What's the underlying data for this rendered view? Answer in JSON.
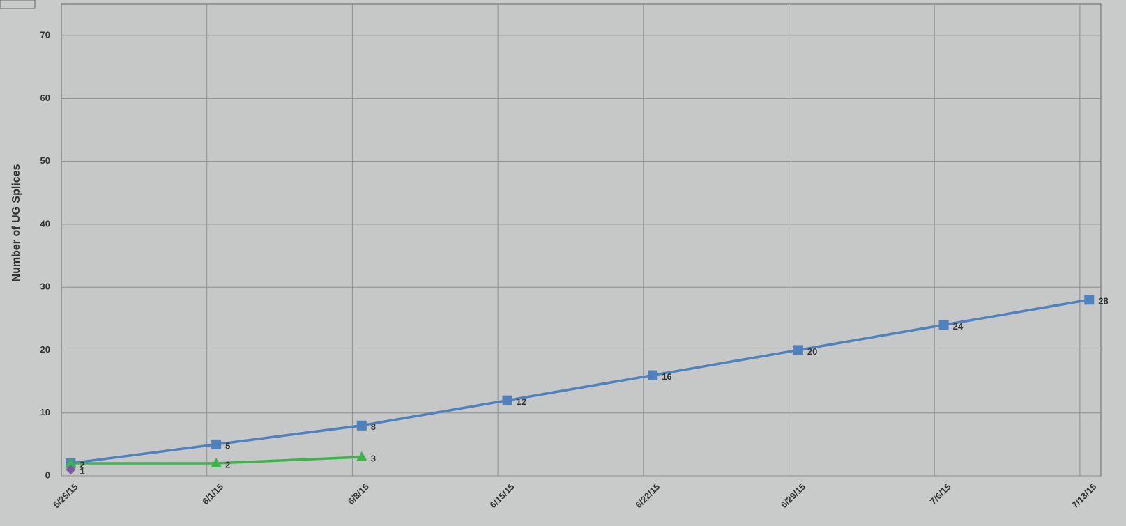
{
  "chart_data": {
    "type": "line",
    "y_label": "Number of UG Splices",
    "categories": [
      "5/25/15",
      "6/1/15",
      "6/8/15",
      "6/15/15",
      "6/22/15",
      "6/29/15",
      "7/6/15",
      "7/13/15"
    ],
    "series": [
      {
        "color": "#4f81bd",
        "marker": "square",
        "values": [
          2,
          5,
          8,
          12,
          16,
          20,
          24,
          28
        ]
      },
      {
        "color": "#3cb44b",
        "marker": "triangle",
        "values": [
          2,
          2,
          3,
          null,
          null,
          null,
          null,
          null
        ]
      },
      {
        "color": "#7e57a8",
        "marker": "diamond",
        "values": [
          1,
          null,
          null,
          null,
          null,
          null,
          null,
          null
        ]
      }
    ],
    "ylim": [
      0,
      75
    ],
    "yticks": [
      0,
      10,
      20,
      30,
      40,
      50,
      60,
      70
    ],
    "grid": true
  }
}
